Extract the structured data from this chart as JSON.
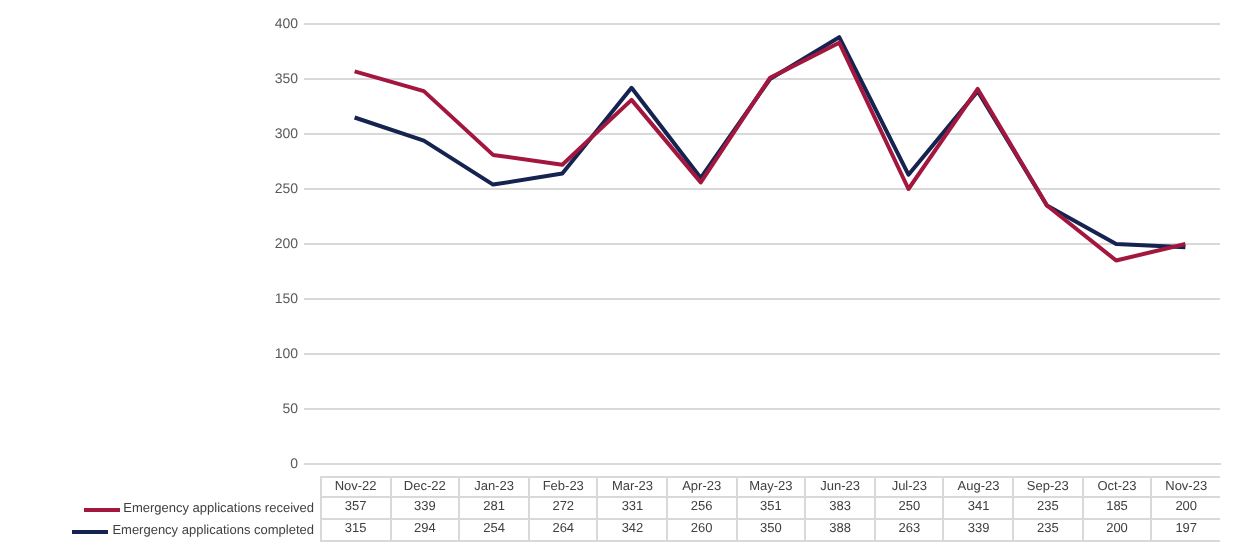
{
  "chart_data": {
    "type": "line",
    "categories": [
      "Nov-22",
      "Dec-22",
      "Jan-23",
      "Feb-23",
      "Mar-23",
      "Apr-23",
      "May-23",
      "Jun-23",
      "Jul-23",
      "Aug-23",
      "Sep-23",
      "Oct-23",
      "Nov-23"
    ],
    "series": [
      {
        "name": "Emergency applications received",
        "color": "#a3173f",
        "values": [
          357,
          339,
          281,
          272,
          331,
          256,
          351,
          383,
          250,
          341,
          235,
          185,
          200
        ]
      },
      {
        "name": "Emergency applications completed",
        "color": "#14234f",
        "values": [
          315,
          294,
          254,
          264,
          342,
          260,
          350,
          388,
          263,
          339,
          235,
          200,
          197
        ]
      }
    ],
    "ylim": [
      0,
      400
    ],
    "yticks": [
      0,
      50,
      100,
      150,
      200,
      250,
      300,
      350,
      400
    ],
    "grid": "y",
    "legend": "bottom",
    "data_labels": true,
    "marker": "none",
    "line_style": "solid"
  }
}
